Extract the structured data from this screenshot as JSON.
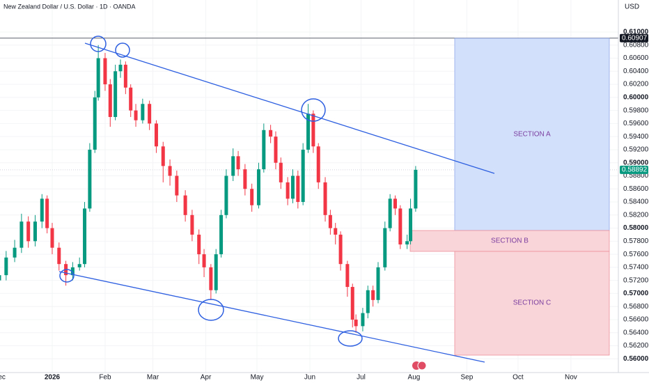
{
  "chart_data": {
    "type": "candlestick",
    "title": "New Zealand Dollar / U.S. Dollar · 1D · OANDA",
    "currency": "USD",
    "up_color": "#089981",
    "down_color": "#f23645",
    "x": [
      -31,
      -27,
      -22,
      -18,
      -14,
      -10,
      -6,
      -3,
      0,
      4,
      8,
      12,
      16,
      19,
      22,
      25,
      27,
      31,
      34,
      37,
      40,
      43,
      46,
      49,
      53,
      57,
      61,
      65,
      69,
      73,
      78,
      82,
      86,
      89,
      93,
      96,
      99,
      102,
      106,
      109,
      113,
      117,
      121,
      124,
      128,
      131,
      134,
      138,
      141,
      144,
      147,
      150,
      153,
      156,
      160,
      163,
      166,
      169,
      173,
      176,
      178,
      182,
      185,
      188,
      191,
      195,
      198,
      201,
      204,
      208,
      210,
      213
    ],
    "open": [
      0.572,
      0.5728,
      0.5755,
      0.577,
      0.581,
      0.578,
      0.581,
      0.5845,
      0.58,
      0.577,
      0.5745,
      0.5728,
      0.574,
      0.5745,
      0.583,
      0.592,
      0.6,
      0.606,
      0.602,
      0.597,
      0.604,
      0.605,
      0.6015,
      0.598,
      0.5965,
      0.599,
      0.596,
      0.5925,
      0.5895,
      0.588,
      0.585,
      0.582,
      0.579,
      0.576,
      0.574,
      0.5705,
      0.576,
      0.582,
      0.588,
      0.591,
      0.589,
      0.586,
      0.5835,
      0.589,
      0.595,
      0.594,
      0.59,
      0.587,
      0.5845,
      0.588,
      0.584,
      0.592,
      0.5975,
      0.5925,
      0.587,
      0.582,
      0.58,
      0.579,
      0.5745,
      0.571,
      0.566,
      0.565,
      0.567,
      0.5705,
      0.569,
      0.574,
      0.58,
      0.5845,
      0.583,
      0.5775,
      0.578,
      0.583
    ],
    "high": [
      0.574,
      0.5765,
      0.5782,
      0.5822,
      0.5818,
      0.582,
      0.5852,
      0.585,
      0.5808,
      0.5778,
      0.575,
      0.5748,
      0.5755,
      0.584,
      0.593,
      0.601,
      0.608,
      0.6068,
      0.6028,
      0.605,
      0.6058,
      0.6055,
      0.602,
      0.599,
      0.5998,
      0.5995,
      0.5965,
      0.5932,
      0.5905,
      0.5888,
      0.5858,
      0.5828,
      0.5798,
      0.5768,
      0.5745,
      0.5768,
      0.5828,
      0.589,
      0.5922,
      0.5918,
      0.5898,
      0.5868,
      0.59,
      0.596,
      0.5958,
      0.5948,
      0.5908,
      0.5878,
      0.589,
      0.5888,
      0.593,
      0.599,
      0.598,
      0.593,
      0.5878,
      0.5828,
      0.5808,
      0.5795,
      0.575,
      0.5715,
      0.5668,
      0.5678,
      0.5712,
      0.5712,
      0.5748,
      0.581,
      0.5852,
      0.585,
      0.5835,
      0.579,
      0.5845,
      0.5895
    ],
    "low": [
      0.571,
      0.572,
      0.5748,
      0.5762,
      0.577,
      0.5772,
      0.58,
      0.5792,
      0.576,
      0.5735,
      0.5712,
      0.572,
      0.5735,
      0.574,
      0.5825,
      0.5915,
      0.5995,
      0.601,
      0.5955,
      0.5965,
      0.603,
      0.6005,
      0.597,
      0.5955,
      0.596,
      0.595,
      0.5915,
      0.587,
      0.5865,
      0.584,
      0.581,
      0.578,
      0.5745,
      0.5725,
      0.569,
      0.57,
      0.5755,
      0.5815,
      0.5872,
      0.588,
      0.585,
      0.5825,
      0.583,
      0.5885,
      0.593,
      0.589,
      0.586,
      0.5835,
      0.5838,
      0.583,
      0.5835,
      0.5915,
      0.5915,
      0.586,
      0.581,
      0.579,
      0.5775,
      0.5735,
      0.5695,
      0.5648,
      0.564,
      0.5642,
      0.5662,
      0.568,
      0.5685,
      0.5735,
      0.5795,
      0.582,
      0.5768,
      0.5768,
      0.5775,
      0.5825
    ],
    "close": [
      0.5728,
      0.5755,
      0.577,
      0.581,
      0.578,
      0.581,
      0.5845,
      0.58,
      0.577,
      0.5745,
      0.5728,
      0.574,
      0.5745,
      0.583,
      0.592,
      0.6,
      0.606,
      0.602,
      0.597,
      0.604,
      0.605,
      0.6015,
      0.598,
      0.5965,
      0.599,
      0.596,
      0.5925,
      0.5895,
      0.588,
      0.585,
      0.582,
      0.579,
      0.576,
      0.574,
      0.5705,
      0.576,
      0.582,
      0.588,
      0.591,
      0.589,
      0.586,
      0.5835,
      0.589,
      0.595,
      0.594,
      0.59,
      0.587,
      0.5845,
      0.588,
      0.584,
      0.592,
      0.5975,
      0.5925,
      0.587,
      0.582,
      0.58,
      0.579,
      0.5745,
      0.571,
      0.566,
      0.565,
      0.567,
      0.5705,
      0.569,
      0.574,
      0.58,
      0.5845,
      0.583,
      0.5775,
      0.578,
      0.583,
      0.58892
    ],
    "xlim": [
      -30.6,
      331.8
    ],
    "xticks": [
      {
        "value": -31,
        "label": "Dec"
      },
      {
        "value": 0,
        "label": "2026"
      },
      {
        "value": 31,
        "label": "Feb"
      },
      {
        "value": 59,
        "label": "Mar"
      },
      {
        "value": 90,
        "label": "Apr"
      },
      {
        "value": 120,
        "label": "May"
      },
      {
        "value": 151,
        "label": "Jun"
      },
      {
        "value": 181,
        "label": "Jul"
      },
      {
        "value": 212,
        "label": "Aug"
      },
      {
        "value": 243,
        "label": "Sep"
      },
      {
        "value": 273,
        "label": "Oct"
      },
      {
        "value": 304,
        "label": "Nov"
      }
    ],
    "ylim": [
      0.5579,
      0.6149
    ],
    "yticks": [
      {
        "value": 0.61,
        "label": "0.61000"
      },
      {
        "value": 0.608,
        "label": "0.60800"
      },
      {
        "value": 0.606,
        "label": "0.60600"
      },
      {
        "value": 0.604,
        "label": "0.60400"
      },
      {
        "value": 0.602,
        "label": "0.60200"
      },
      {
        "value": 0.6,
        "label": "0.60000"
      },
      {
        "value": 0.598,
        "label": "0.59800"
      },
      {
        "value": 0.596,
        "label": "0.59600"
      },
      {
        "value": 0.594,
        "label": "0.59400"
      },
      {
        "value": 0.592,
        "label": "0.59200"
      },
      {
        "value": 0.59,
        "label": "0.59000"
      },
      {
        "value": 0.588,
        "label": "0.58800"
      },
      {
        "value": 0.586,
        "label": "0.58600"
      },
      {
        "value": 0.584,
        "label": "0.58400"
      },
      {
        "value": 0.582,
        "label": "0.58200"
      },
      {
        "value": 0.58,
        "label": "0.58000"
      },
      {
        "value": 0.578,
        "label": "0.57800"
      },
      {
        "value": 0.576,
        "label": "0.57600"
      },
      {
        "value": 0.574,
        "label": "0.57400"
      },
      {
        "value": 0.572,
        "label": "0.57200"
      },
      {
        "value": 0.57,
        "label": "0.57000"
      },
      {
        "value": 0.568,
        "label": "0.56800"
      },
      {
        "value": 0.566,
        "label": "0.56600"
      },
      {
        "value": 0.564,
        "label": "0.56400"
      },
      {
        "value": 0.562,
        "label": "0.56200"
      },
      {
        "value": 0.56,
        "label": "0.56000"
      }
    ],
    "price_line": 0.60907,
    "last_price": 0.58892,
    "sections": [
      "SECTION A",
      "SECTION B",
      "SECTION C"
    ]
  }
}
